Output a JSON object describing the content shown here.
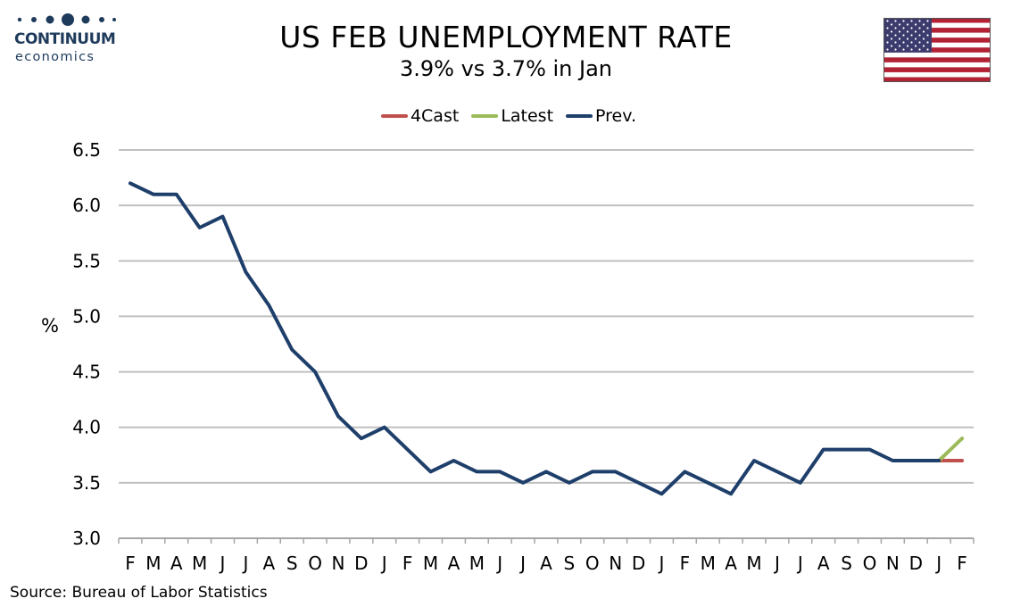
{
  "logo": {
    "name": "CONTINUUM",
    "sub": "economics"
  },
  "header": {
    "title": "US FEB UNEMPLOYMENT RATE",
    "subtitle": "3.9% vs 3.7% in Jan"
  },
  "legend": [
    {
      "label": "4Cast",
      "color": "#c0504d"
    },
    {
      "label": "Latest",
      "color": "#9bbb59"
    },
    {
      "label": "Prev.",
      "color": "#1f3f6b"
    }
  ],
  "colors": {
    "brand": "#1f3b5c",
    "grid": "#c0c0c0",
    "flag_red": "#b22234",
    "flag_blue": "#3c3b6e"
  },
  "chart_data": {
    "type": "line",
    "ylabel": "%",
    "xlabel": "",
    "ylim": [
      3.0,
      6.5
    ],
    "yticks": [
      "3.0",
      "3.5",
      "4.0",
      "4.5",
      "5.0",
      "5.5",
      "6.0",
      "6.5"
    ],
    "grid": true,
    "legend_position": "top-center",
    "categories": [
      "F",
      "M",
      "A",
      "M",
      "J",
      "J",
      "A",
      "S",
      "O",
      "N",
      "D",
      "J",
      "F",
      "M",
      "A",
      "M",
      "J",
      "J",
      "A",
      "S",
      "O",
      "N",
      "D",
      "J",
      "F",
      "M",
      "A",
      "M",
      "J",
      "J",
      "A",
      "S",
      "O",
      "N",
      "D",
      "J",
      "F"
    ],
    "series": [
      {
        "name": "Prev.",
        "color": "#1f3f6b",
        "values": [
          6.2,
          6.1,
          6.1,
          5.8,
          5.9,
          5.4,
          5.1,
          4.7,
          4.5,
          4.1,
          3.9,
          4.0,
          3.8,
          3.6,
          3.7,
          3.6,
          3.6,
          3.5,
          3.6,
          3.5,
          3.6,
          3.6,
          3.5,
          3.4,
          3.6,
          3.5,
          3.4,
          3.7,
          3.6,
          3.5,
          3.8,
          3.8,
          3.8,
          3.7,
          3.7,
          3.7,
          null
        ]
      },
      {
        "name": "4Cast",
        "color": "#c0504d",
        "values": [
          null,
          null,
          null,
          null,
          null,
          null,
          null,
          null,
          null,
          null,
          null,
          null,
          null,
          null,
          null,
          null,
          null,
          null,
          null,
          null,
          null,
          null,
          null,
          null,
          null,
          null,
          null,
          null,
          null,
          null,
          null,
          null,
          null,
          null,
          null,
          3.7,
          3.7
        ]
      },
      {
        "name": "Latest",
        "color": "#9bbb59",
        "values": [
          null,
          null,
          null,
          null,
          null,
          null,
          null,
          null,
          null,
          null,
          null,
          null,
          null,
          null,
          null,
          null,
          null,
          null,
          null,
          null,
          null,
          null,
          null,
          null,
          null,
          null,
          null,
          null,
          null,
          null,
          null,
          null,
          null,
          null,
          null,
          3.7,
          3.9
        ]
      }
    ]
  },
  "source": "Source: Bureau of Labor Statistics"
}
